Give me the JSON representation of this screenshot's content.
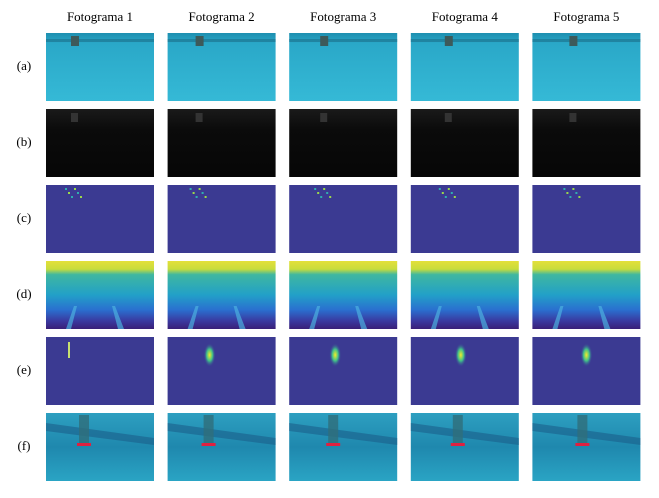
{
  "header": {
    "columns": [
      "Fotograma 1",
      "Fotograma 2",
      "Fotograma 3",
      "Fotograma 4",
      "Fotograma 5"
    ]
  },
  "rows": [
    "(a)",
    "(b)",
    "(c)",
    "(d)",
    "(e)",
    "(f)"
  ]
}
